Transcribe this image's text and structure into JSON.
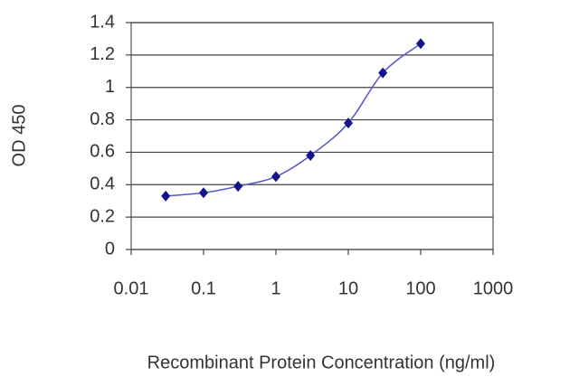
{
  "chart_data": {
    "type": "line",
    "x_label": "Recombinant Protein Concentration (ng/ml)",
    "y_label": "OD 450",
    "x": [
      0.03,
      0.1,
      0.3,
      1,
      3,
      10,
      30,
      100
    ],
    "values": [
      0.33,
      0.35,
      0.39,
      0.45,
      0.58,
      0.78,
      1.09,
      1.27
    ],
    "line_color": "#5555cc",
    "marker_color": "#14148a",
    "xscale": "log",
    "xlim": [
      0.01,
      1000
    ],
    "xticks": [
      0.01,
      0.1,
      1,
      10,
      100,
      1000
    ],
    "ylim": [
      0,
      1.4
    ],
    "yticks": [
      0,
      0.2,
      0.4,
      0.6,
      0.8,
      1,
      1.2,
      1.4
    ],
    "grid": true
  }
}
